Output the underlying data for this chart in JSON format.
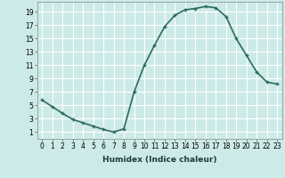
{
  "x": [
    0,
    1,
    2,
    3,
    4,
    5,
    6,
    7,
    8,
    9,
    10,
    11,
    12,
    13,
    14,
    15,
    16,
    17,
    18,
    19,
    20,
    21,
    22,
    23
  ],
  "y": [
    5.8,
    4.8,
    3.8,
    2.9,
    2.4,
    1.9,
    1.4,
    1.0,
    1.5,
    7.0,
    11.0,
    14.0,
    16.8,
    18.5,
    19.3,
    19.5,
    19.8,
    19.6,
    18.3,
    15.0,
    12.5,
    10.0,
    8.5,
    8.2
  ],
  "line_color": "#2d6b5e",
  "marker": "+",
  "bg_color": "#cceae7",
  "grid_color": "#ffffff",
  "xlabel": "Humidex (Indice chaleur)",
  "ylim": [
    0,
    20
  ],
  "xlim": [
    -0.5,
    23.5
  ],
  "yticks": [
    1,
    3,
    5,
    7,
    9,
    11,
    13,
    15,
    17,
    19
  ],
  "xticks": [
    0,
    1,
    2,
    3,
    4,
    5,
    6,
    7,
    8,
    9,
    10,
    11,
    12,
    13,
    14,
    15,
    16,
    17,
    18,
    19,
    20,
    21,
    22,
    23
  ],
  "tick_fontsize": 5.5,
  "xlabel_fontsize": 6.5,
  "marker_size": 3.5,
  "linewidth": 1.2
}
